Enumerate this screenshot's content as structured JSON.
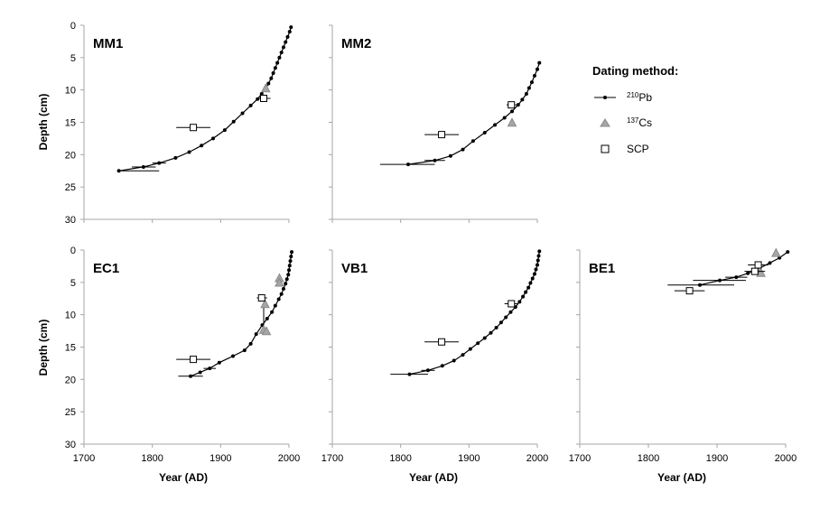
{
  "figure": {
    "legend": {
      "title": "Dating method:",
      "entries": [
        {
          "key": "pb",
          "sup": "210",
          "base": "Pb",
          "symbol": "line-dot"
        },
        {
          "key": "cs",
          "sup": "137",
          "base": "Cs",
          "symbol": "triangle"
        },
        {
          "key": "scp",
          "sup": "",
          "base": "SCP",
          "symbol": "square"
        }
      ]
    },
    "y_axis_title": "Depth (cm)",
    "x_axis_title": "Year (AD)",
    "colors": {
      "line": "#000000",
      "cs_fill": "#a6a6a6",
      "cs_stroke": "#8a8a8a",
      "scp_fill": "#ffffff",
      "axis": "#a6a6a6"
    }
  },
  "chart_data": [
    {
      "type": "scatter",
      "title": "MM1",
      "xlabel": "",
      "ylabel": "Depth (cm)",
      "xlim": [
        1700,
        2000
      ],
      "ylim": [
        0,
        30
      ],
      "y_inverted": true,
      "x_ticks": [],
      "y_ticks": [
        0,
        5,
        10,
        15,
        20,
        25,
        30
      ],
      "series": [
        {
          "name": "210Pb",
          "marker": "dot-line",
          "points": [
            [
              2003,
              0.3
            ],
            [
              2001,
              1.0
            ],
            [
              1998,
              1.8
            ],
            [
              1995,
              2.6
            ],
            [
              1992,
              3.4
            ],
            [
              1989,
              4.2
            ],
            [
              1986,
              5.0
            ],
            [
              1983,
              5.8
            ],
            [
              1980,
              6.6
            ],
            [
              1977,
              7.4
            ],
            [
              1974,
              8.2
            ],
            [
              1970,
              9.0
            ],
            [
              1966,
              9.8
            ],
            [
              1960,
              10.6
            ],
            [
              1954,
              11.4
            ],
            [
              1944,
              12.4
            ],
            [
              1932,
              13.6
            ],
            [
              1919,
              14.9
            ],
            [
              1906,
              16.2
            ],
            [
              1889,
              17.5
            ],
            [
              1872,
              18.6
            ],
            [
              1854,
              19.6
            ],
            [
              1834,
              20.5
            ],
            [
              1810,
              21.3
            ],
            [
              1787,
              21.9
            ],
            [
              1751,
              22.5
            ]
          ],
          "x_err": [
            [
              1751,
              22.5,
              1750,
              1810
            ],
            [
              1787,
              21.9,
              1770,
              1805
            ],
            [
              1810,
              21.3,
              1800,
              1820
            ]
          ]
        },
        {
          "name": "137Cs",
          "marker": "triangle",
          "points": [
            [
              1966,
              9.8
            ]
          ]
        },
        {
          "name": "SCP",
          "marker": "square",
          "points": [
            [
              1860,
              15.8
            ],
            [
              1963,
              11.3
            ]
          ],
          "x_err": [
            [
              1860,
              15.8,
              1835,
              1885
            ],
            [
              1963,
              11.3,
              1953,
              1973
            ]
          ]
        }
      ]
    },
    {
      "type": "scatter",
      "title": "MM2",
      "xlabel": "",
      "ylabel": "",
      "xlim": [
        1700,
        2000
      ],
      "ylim": [
        0,
        30
      ],
      "y_inverted": true,
      "x_ticks": [],
      "y_ticks": [],
      "series": [
        {
          "name": "210Pb",
          "marker": "dot-line",
          "points": [
            [
              2003,
              5.8
            ],
            [
              2000,
              6.8
            ],
            [
              1996,
              7.8
            ],
            [
              1992,
              8.8
            ],
            [
              1988,
              9.7
            ],
            [
              1984,
              10.6
            ],
            [
              1978,
              11.5
            ],
            [
              1972,
              12.3
            ],
            [
              1963,
              13.3
            ],
            [
              1952,
              14.3
            ],
            [
              1938,
              15.4
            ],
            [
              1923,
              16.6
            ],
            [
              1906,
              17.9
            ],
            [
              1891,
              19.2
            ],
            [
              1873,
              20.2
            ],
            [
              1850,
              20.9
            ],
            [
              1811,
              21.5
            ]
          ],
          "x_err": [
            [
              1811,
              21.5,
              1770,
              1850
            ],
            [
              1850,
              20.9,
              1835,
              1865
            ]
          ]
        },
        {
          "name": "137Cs",
          "marker": "triangle",
          "points": [
            [
              1963,
              15.1
            ]
          ]
        },
        {
          "name": "SCP",
          "marker": "square",
          "points": [
            [
              1860,
              16.9
            ],
            [
              1962,
              12.3
            ]
          ],
          "x_err": [
            [
              1860,
              16.9,
              1835,
              1885
            ],
            [
              1962,
              12.3,
              1955,
              1970
            ]
          ]
        }
      ]
    },
    {
      "type": "scatter",
      "title": "EC1",
      "xlabel": "Year (AD)",
      "ylabel": "Depth (cm)",
      "xlim": [
        1700,
        2000
      ],
      "ylim": [
        0,
        30
      ],
      "y_inverted": true,
      "x_ticks": [
        1700,
        1800,
        1900,
        2000
      ],
      "y_ticks": [
        0,
        5,
        10,
        15,
        20,
        25,
        30
      ],
      "series": [
        {
          "name": "210Pb",
          "marker": "dot-line",
          "points": [
            [
              2004,
              0.3
            ],
            [
              2003,
              1.0
            ],
            [
              2002,
              1.7
            ],
            [
              2001,
              2.4
            ],
            [
              2000,
              3.1
            ],
            [
              1999,
              3.8
            ],
            [
              1997,
              4.5
            ],
            [
              1995,
              5.2
            ],
            [
              1992,
              6.0
            ],
            [
              1989,
              6.8
            ],
            [
              1985,
              7.6
            ],
            [
              1980,
              8.6
            ],
            [
              1975,
              9.6
            ],
            [
              1968,
              10.6
            ],
            [
              1961,
              11.6
            ],
            [
              1952,
              13.0
            ],
            [
              1944,
              14.5
            ],
            [
              1935,
              15.5
            ],
            [
              1918,
              16.4
            ],
            [
              1898,
              17.4
            ],
            [
              1884,
              18.3
            ],
            [
              1870,
              18.9
            ],
            [
              1856,
              19.5
            ]
          ],
          "x_err": [
            [
              1856,
              19.5,
              1838,
              1874
            ],
            [
              1884,
              18.3,
              1875,
              1893
            ]
          ]
        },
        {
          "name": "137Cs",
          "marker": "triangle",
          "points": [
            [
              1986,
              4.4
            ],
            [
              1986,
              5.1
            ],
            [
              1965,
              8.4
            ],
            [
              1963,
              12.4
            ],
            [
              1967,
              12.6
            ]
          ],
          "y_err": [
            [
              1963,
              8.4,
              12.4
            ]
          ]
        },
        {
          "name": "SCP",
          "marker": "square",
          "points": [
            [
              1860,
              16.9
            ],
            [
              1960,
              7.4
            ]
          ],
          "x_err": [
            [
              1860,
              16.9,
              1835,
              1885
            ],
            [
              1960,
              7.4,
              1953,
              1968
            ]
          ]
        }
      ]
    },
    {
      "type": "scatter",
      "title": "VB1",
      "xlabel": "Year (AD)",
      "ylabel": "",
      "xlim": [
        1700,
        2000
      ],
      "ylim": [
        0,
        30
      ],
      "y_inverted": true,
      "x_ticks": [
        1700,
        1800,
        1900,
        2000
      ],
      "y_ticks": [],
      "series": [
        {
          "name": "210Pb",
          "marker": "dot-line",
          "points": [
            [
              2003,
              0.2
            ],
            [
              2002,
              0.9
            ],
            [
              2001,
              1.6
            ],
            [
              2000,
              2.3
            ],
            [
              1998,
              3.0
            ],
            [
              1996,
              3.7
            ],
            [
              1993,
              4.4
            ],
            [
              1990,
              5.1
            ],
            [
              1987,
              5.8
            ],
            [
              1983,
              6.5
            ],
            [
              1979,
              7.2
            ],
            [
              1974,
              8.0
            ],
            [
              1968,
              8.8
            ],
            [
              1961,
              9.6
            ],
            [
              1954,
              10.4
            ],
            [
              1947,
              11.2
            ],
            [
              1940,
              12.0
            ],
            [
              1932,
              12.8
            ],
            [
              1923,
              13.6
            ],
            [
              1913,
              14.4
            ],
            [
              1902,
              15.3
            ],
            [
              1891,
              16.2
            ],
            [
              1878,
              17.1
            ],
            [
              1861,
              17.9
            ],
            [
              1840,
              18.6
            ],
            [
              1813,
              19.2
            ]
          ],
          "x_err": [
            [
              1813,
              19.2,
              1785,
              1840
            ],
            [
              1840,
              18.6,
              1830,
              1850
            ]
          ]
        },
        {
          "name": "SCP",
          "marker": "square",
          "points": [
            [
              1860,
              14.2
            ],
            [
              1962,
              8.3
            ]
          ],
          "x_err": [
            [
              1860,
              14.2,
              1835,
              1885
            ],
            [
              1962,
              8.3,
              1952,
              1972
            ]
          ]
        }
      ]
    },
    {
      "type": "scatter",
      "title": "BE1",
      "xlabel": "Year (AD)",
      "ylabel": "",
      "xlim": [
        1700,
        2000
      ],
      "ylim": [
        0,
        30
      ],
      "y_inverted": true,
      "x_ticks": [
        1700,
        1800,
        1900,
        2000
      ],
      "y_ticks": [],
      "series": [
        {
          "name": "210Pb",
          "marker": "dot-line",
          "points": [
            [
              2003,
              0.3
            ],
            [
              1991,
              1.2
            ],
            [
              1977,
              2.0
            ],
            [
              1962,
              2.8
            ],
            [
              1945,
              3.6
            ],
            [
              1928,
              4.2
            ],
            [
              1904,
              4.7
            ],
            [
              1875,
              5.4
            ]
          ],
          "x_err": [
            [
              1875,
              5.4,
              1828,
              1925
            ],
            [
              1904,
              4.7,
              1865,
              1942
            ],
            [
              1928,
              4.2,
              1912,
              1944
            ]
          ]
        },
        {
          "name": "137Cs",
          "marker": "triangle",
          "points": [
            [
              1986,
              0.5
            ],
            [
              1962,
              3.2
            ],
            [
              1964,
              3.6
            ]
          ]
        },
        {
          "name": "SCP",
          "marker": "square",
          "points": [
            [
              1860,
              6.3
            ],
            [
              1960,
              2.3
            ],
            [
              1955,
              3.3
            ]
          ],
          "x_err": [
            [
              1860,
              6.3,
              1838,
              1882
            ],
            [
              1960,
              2.3,
              1945,
              1975
            ],
            [
              1955,
              3.3,
              1940,
              1970
            ]
          ]
        }
      ]
    }
  ]
}
